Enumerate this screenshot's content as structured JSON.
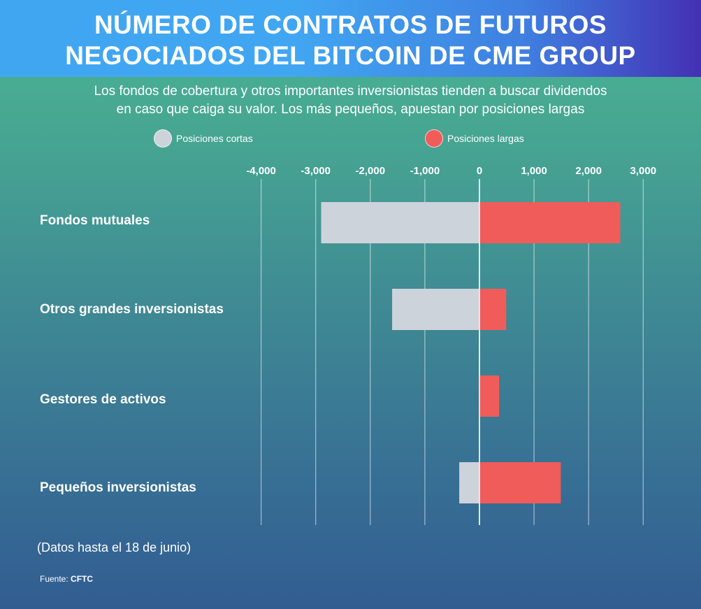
{
  "header": {
    "title_line1": "NÚMERO DE CONTRATOS DE FUTUROS",
    "title_line2": "NEGOCIADOS DEL BITCOIN DE CME GROUP"
  },
  "subtitle_line1": "Los fondos de cobertura y otros importantes inversionistas tienden a buscar dividendos",
  "subtitle_line2": "en caso que caiga su valor. Los más pequeños, apuestan por posiciones largas",
  "legend": [
    {
      "label": "Posiciones cortas",
      "color": "#cdd3db"
    },
    {
      "label": "Posiciones largas",
      "color": "#f05c5a"
    }
  ],
  "note": "(Datos hasta el 18 de junio)",
  "source_prefix": "Fuente:",
  "source_name": "CFTC",
  "chart_data": {
    "type": "bar",
    "orientation": "horizontal",
    "stacked": "diverging",
    "title": "NÚMERO DE CONTRATOS DE FUTUROS NEGOCIADOS DEL BITCOIN DE CME GROUP",
    "categories": [
      "Fondos mutuales",
      "Otros grandes inversionistas",
      "Gestores de activos",
      "Pequeños inversionistas"
    ],
    "series": [
      {
        "name": "Posiciones cortas",
        "color": "#cdd3db",
        "values": [
          -2900,
          -1600,
          0,
          -370
        ]
      },
      {
        "name": "Posiciones largas",
        "color": "#f05c5a",
        "values": [
          2580,
          490,
          360,
          1490
        ]
      }
    ],
    "xticks": [
      -4000,
      -3000,
      -2000,
      -1000,
      0,
      1000,
      2000,
      3000
    ],
    "xtick_labels": [
      "-4,000",
      "-3,000",
      "-2,000",
      "-1,000",
      "0",
      "1,000",
      "2,000",
      "3,000"
    ],
    "xlim": [
      -4000,
      3000
    ],
    "xlabel": "",
    "ylabel": "",
    "grid": true,
    "legend_position": "top"
  }
}
